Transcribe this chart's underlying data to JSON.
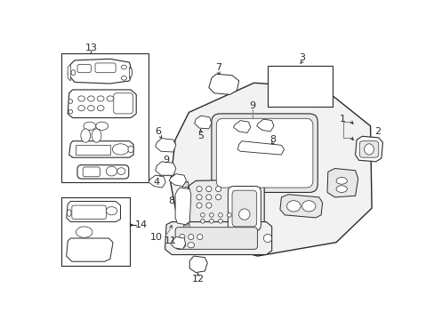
{
  "bg_color": "#ffffff",
  "lc": "#2a2a2a",
  "gc": "#888888",
  "fig_width": 4.89,
  "fig_height": 3.6,
  "dpi": 100
}
